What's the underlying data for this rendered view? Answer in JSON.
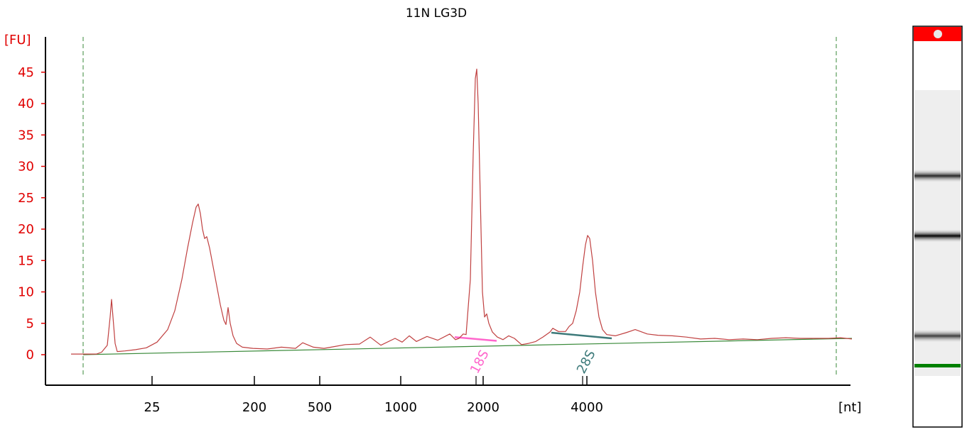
{
  "chart_data": {
    "type": "line",
    "title": "11N LG3D",
    "ylabel": "[FU]",
    "xlabel": "[nt]",
    "ylim": [
      -4.5,
      50
    ],
    "yticks": [
      0,
      5,
      10,
      15,
      20,
      25,
      30,
      35,
      40,
      45
    ],
    "xticks": [
      "25",
      "200",
      "500",
      "1000",
      "2000",
      "4000"
    ],
    "x_scale": "ladder (non-linear)",
    "grid": false,
    "series": [
      {
        "color": "#c04040",
        "points": [
          [
            4,
            0.1
          ],
          [
            21,
            0.1
          ],
          [
            40,
            0.1
          ],
          [
            47,
            0.4
          ],
          [
            55,
            1.5
          ],
          [
            59,
            6
          ],
          [
            61,
            8.8
          ],
          [
            63,
            6
          ],
          [
            66,
            1.8
          ],
          [
            69,
            0.5
          ],
          [
            80,
            0.6
          ],
          [
            95,
            0.8
          ],
          [
            110,
            1.1
          ],
          [
            125,
            2
          ],
          [
            140,
            4
          ],
          [
            150,
            7
          ],
          [
            160,
            12
          ],
          [
            168,
            17
          ],
          [
            175,
            21
          ],
          [
            180,
            23.5
          ],
          [
            183,
            24
          ],
          [
            186,
            22.5
          ],
          [
            189,
            20
          ],
          [
            192,
            18.5
          ],
          [
            195,
            18.8
          ],
          [
            199,
            17
          ],
          [
            204,
            14
          ],
          [
            209,
            11
          ],
          [
            214,
            8
          ],
          [
            219,
            5.5
          ],
          [
            222,
            4.8
          ],
          [
            225,
            7.5
          ],
          [
            228,
            5
          ],
          [
            232,
            3
          ],
          [
            237,
            1.8
          ],
          [
            245,
            1.2
          ],
          [
            260,
            1
          ],
          [
            280,
            0.9
          ],
          [
            300,
            1.2
          ],
          [
            320,
            1
          ],
          [
            330,
            1.9
          ],
          [
            345,
            1.2
          ],
          [
            360,
            1
          ],
          [
            375,
            1.3
          ],
          [
            390,
            1.6
          ],
          [
            410,
            1.7
          ],
          [
            425,
            2.8
          ],
          [
            440,
            1.5
          ],
          [
            460,
            2.6
          ],
          [
            470,
            2
          ],
          [
            480,
            3
          ],
          [
            490,
            2.1
          ],
          [
            505,
            2.9
          ],
          [
            520,
            2.3
          ],
          [
            537,
            3.3
          ],
          [
            545,
            2.4
          ],
          [
            550,
            2.6
          ],
          [
            556,
            3.3
          ],
          [
            560,
            3.2
          ],
          [
            566,
            12
          ],
          [
            570,
            32
          ],
          [
            573,
            44
          ],
          [
            575,
            45.5
          ],
          [
            577,
            40
          ],
          [
            580,
            25
          ],
          [
            583,
            10
          ],
          [
            586,
            6
          ],
          [
            589,
            6.5
          ],
          [
            592,
            5
          ],
          [
            597,
            3.6
          ],
          [
            604,
            2.8
          ],
          [
            612,
            2.4
          ],
          [
            620,
            3
          ],
          [
            628,
            2.6
          ],
          [
            638,
            1.6
          ],
          [
            648,
            1.8
          ],
          [
            658,
            2.1
          ],
          [
            668,
            2.8
          ],
          [
            678,
            3.6
          ],
          [
            682,
            4.2
          ],
          [
            690,
            3.7
          ],
          [
            700,
            3.7
          ],
          [
            705,
            4.5
          ],
          [
            710,
            5
          ],
          [
            715,
            7
          ],
          [
            720,
            10
          ],
          [
            724,
            14
          ],
          [
            728,
            17.5
          ],
          [
            731,
            19
          ],
          [
            734,
            18.5
          ],
          [
            738,
            15
          ],
          [
            742,
            10
          ],
          [
            747,
            6
          ],
          [
            752,
            4
          ],
          [
            758,
            3.2
          ],
          [
            770,
            3
          ],
          [
            785,
            3.5
          ],
          [
            798,
            4
          ],
          [
            815,
            3.3
          ],
          [
            830,
            3.1
          ],
          [
            850,
            3
          ],
          [
            870,
            2.8
          ],
          [
            890,
            2.5
          ],
          [
            910,
            2.6
          ],
          [
            930,
            2.4
          ],
          [
            950,
            2.5
          ],
          [
            970,
            2.4
          ],
          [
            990,
            2.6
          ],
          [
            1010,
            2.7
          ],
          [
            1030,
            2.6
          ],
          [
            1050,
            2.6
          ],
          [
            1070,
            2.6
          ],
          [
            1087,
            2.7
          ],
          [
            1103,
            2.5
          ]
        ]
      }
    ],
    "baseline": {
      "color": "#3a8a3a",
      "from": [
        21,
        0
      ],
      "to": [
        1103,
        2.6
      ]
    },
    "region_markers": {
      "color": "#3a8a3a",
      "positions": [
        21,
        1081
      ]
    },
    "fragments": [
      {
        "label": "18S",
        "color": "#ff66cc",
        "x_line": [
          544,
          603
        ],
        "y_line": [
          2.8,
          2.2
        ],
        "tick_x": 574
      },
      {
        "label": "28S",
        "color": "#3d7a7a",
        "x_line": [
          680,
          765
        ],
        "y_line": [
          3.5,
          2.6
        ],
        "tick_x": 724
      }
    ]
  },
  "gel_lane": {
    "marker_color": "#ff0000",
    "lower_marker_color": "#008000",
    "bands": [
      {
        "position": 0.3,
        "intensity": 0.85
      },
      {
        "position": 0.51,
        "intensity": 1.0
      },
      {
        "position": 0.86,
        "intensity": 0.75
      }
    ]
  }
}
